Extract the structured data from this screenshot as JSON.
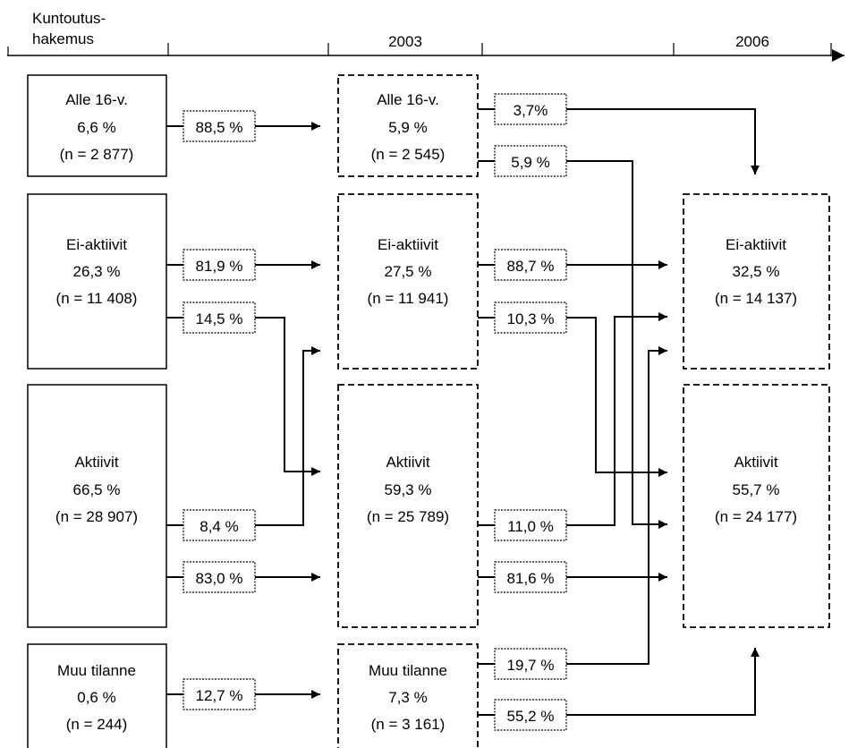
{
  "timeline": {
    "start_label_line1": "Kuntoutus-",
    "start_label_line2": "hakemus",
    "year_2003": "2003",
    "year_2006": "2006"
  },
  "col1": {
    "alle16": [
      "Alle 16-v.",
      "6,6 %",
      "(n = 2 877)"
    ],
    "eiaktiivit": [
      "Ei-aktiivit",
      "26,3 %",
      "(n = 11 408)"
    ],
    "aktiivit": [
      "Aktiivit",
      "66,5 %",
      "(n = 28 907)"
    ],
    "muu": [
      "Muu tilanne",
      "0,6 %",
      "(n = 244)"
    ]
  },
  "col2": {
    "alle16": [
      "Alle 16-v.",
      "5,9 %",
      "(n = 2 545)"
    ],
    "eiaktiivit": [
      "Ei-aktiivit",
      "27,5 %",
      "(n = 11 941)"
    ],
    "aktiivit": [
      "Aktiivit",
      "59,3 %",
      "(n = 25 789)"
    ],
    "muu": [
      "Muu tilanne",
      "7,3 %",
      "(n = 3 161)"
    ]
  },
  "col3": {
    "eiaktiivit": [
      "Ei-aktiivit",
      "32,5 %",
      "(n = 14 137)"
    ],
    "aktiivit": [
      "Aktiivit",
      "55,7 %",
      "(n = 24 177)"
    ]
  },
  "flows1": {
    "alle16_to_alle16": "88,5 %",
    "ei_to_ei": "81,9 %",
    "ei_to_akt": "14,5 %",
    "akt_to_ei": "8,4 %",
    "akt_to_akt": "83,0 %",
    "muu_to_muu": "12,7 %"
  },
  "flows2": {
    "alle16_to_ei": "3,7%",
    "alle16_to_akt": "5,9 %",
    "ei_to_ei": "88,7 %",
    "ei_to_akt": "10,3 %",
    "akt_to_ei": "11,0 %",
    "akt_to_akt": "81,6 %",
    "muu_to_ei": "19,7 %",
    "muu_to_akt": "55,2 %"
  }
}
